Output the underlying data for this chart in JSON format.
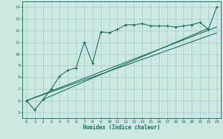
{
  "xlabel": "Humidex (Indice chaleur)",
  "bg_color": "#cce8e2",
  "grid_color": "#aaccc6",
  "line_color": "#1a6b5a",
  "xlim": [
    -0.5,
    23.5
  ],
  "ylim": [
    4.5,
    14.5
  ],
  "xticks": [
    0,
    1,
    2,
    3,
    4,
    5,
    6,
    7,
    8,
    9,
    10,
    11,
    12,
    13,
    14,
    15,
    16,
    17,
    18,
    19,
    20,
    21,
    22,
    23
  ],
  "yticks": [
    5,
    6,
    7,
    8,
    9,
    10,
    11,
    12,
    13,
    14
  ],
  "main_x": [
    0,
    1,
    2,
    3,
    4,
    5,
    6,
    7,
    8,
    9,
    10,
    11,
    12,
    13,
    14,
    15,
    16,
    17,
    18,
    19,
    20,
    21,
    22,
    23
  ],
  "main_y": [
    6.0,
    5.2,
    6.1,
    7.0,
    8.1,
    8.6,
    8.8,
    11.0,
    9.2,
    11.9,
    11.8,
    12.1,
    12.5,
    12.5,
    12.6,
    12.4,
    12.4,
    12.4,
    12.3,
    12.4,
    12.5,
    12.7,
    12.1,
    14.0
  ],
  "line1_x": [
    0,
    23
  ],
  "line1_y": [
    6.0,
    12.3
  ],
  "line2_x": [
    0,
    23
  ],
  "line2_y": [
    6.0,
    11.8
  ],
  "line3_x": [
    2,
    22
  ],
  "line3_y": [
    6.1,
    12.2
  ]
}
